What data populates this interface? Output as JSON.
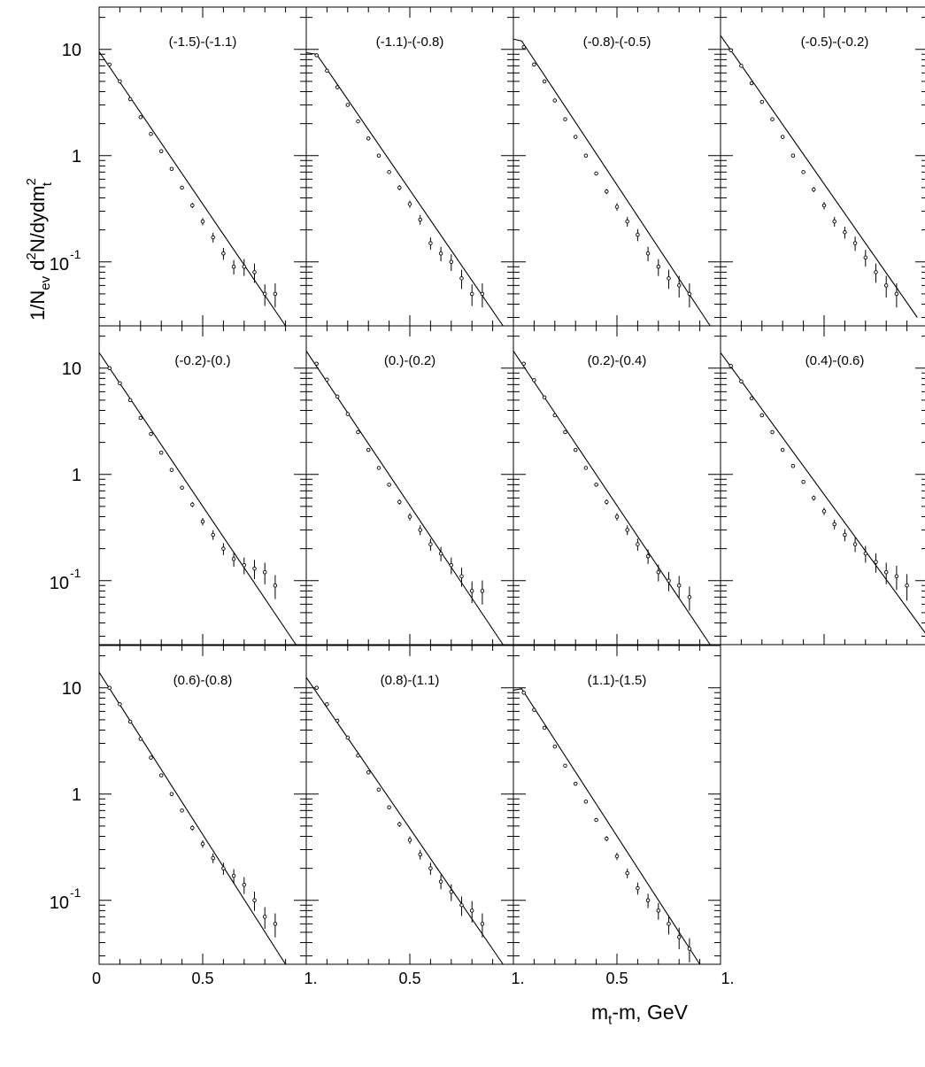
{
  "figure": {
    "y_axis_label": {
      "main": "1/N",
      "sub1": "ev",
      "mid": " d",
      "sup1": "2",
      "tail": "N/dydm",
      "sup2": "2",
      "sub2": "t"
    },
    "x_axis_label": {
      "main": "m",
      "sub": "t",
      "tail": "-m, GeV"
    },
    "x_tick_labels": [
      "0",
      "0.5",
      "1.",
      "0.5",
      "1.",
      "0.5",
      "1."
    ],
    "y_tick_labels": {
      "ten": "10",
      "one": "1",
      "tenth_base": "10",
      "tenth_exp": "-1"
    }
  },
  "chart_data": [
    {
      "type": "scatter",
      "title": "(-1.5)-(-1.1)",
      "scale_y": "log",
      "xlim": [
        0,
        1
      ],
      "ylim": [
        0.025,
        25
      ],
      "fit": {
        "x": [
          0,
          0.9
        ],
        "y": [
          9.5,
          0.025
        ]
      },
      "x": [
        0.05,
        0.1,
        0.15,
        0.2,
        0.25,
        0.3,
        0.35,
        0.4,
        0.45,
        0.5,
        0.55,
        0.6,
        0.65,
        0.7,
        0.75,
        0.8,
        0.85
      ],
      "y": [
        7.2,
        5.0,
        3.4,
        2.3,
        1.6,
        1.1,
        0.75,
        0.5,
        0.34,
        0.24,
        0.17,
        0.12,
        0.09,
        0.09,
        0.08,
        0.05,
        0.05
      ]
    },
    {
      "type": "scatter",
      "title": "(-1.1)-(-0.8)",
      "scale_y": "log",
      "xlim": [
        0,
        1
      ],
      "ylim": [
        0.025,
        25
      ],
      "fit": {
        "x": [
          0,
          0.05,
          0.95
        ],
        "y": [
          9.3,
          9.0,
          0.025
        ]
      },
      "x": [
        0.05,
        0.1,
        0.15,
        0.2,
        0.25,
        0.3,
        0.35,
        0.4,
        0.45,
        0.5,
        0.55,
        0.6,
        0.65,
        0.7,
        0.75,
        0.8,
        0.85
      ],
      "y": [
        8.8,
        6.3,
        4.4,
        3.0,
        2.1,
        1.45,
        1.0,
        0.7,
        0.5,
        0.35,
        0.25,
        0.15,
        0.12,
        0.1,
        0.07,
        0.05,
        0.05
      ]
    },
    {
      "type": "scatter",
      "title": "(-0.8)-(-0.5)",
      "scale_y": "log",
      "xlim": [
        0,
        1
      ],
      "ylim": [
        0.025,
        25
      ],
      "fit": {
        "x": [
          0,
          0.04,
          0.95
        ],
        "y": [
          12.5,
          12.0,
          0.025
        ]
      },
      "x": [
        0.05,
        0.1,
        0.15,
        0.2,
        0.25,
        0.3,
        0.35,
        0.4,
        0.45,
        0.5,
        0.55,
        0.6,
        0.65,
        0.7,
        0.75,
        0.8,
        0.85
      ],
      "y": [
        10.5,
        7.2,
        5.0,
        3.3,
        2.2,
        1.5,
        1.0,
        0.68,
        0.46,
        0.33,
        0.24,
        0.18,
        0.12,
        0.09,
        0.07,
        0.06,
        0.05
      ]
    },
    {
      "type": "scatter",
      "title": "(-0.5)-(-0.2)",
      "scale_y": "log",
      "xlim": [
        0,
        1
      ],
      "ylim": [
        0.025,
        25
      ],
      "fit": {
        "x": [
          0,
          0.95
        ],
        "y": [
          13.5,
          0.03
        ]
      },
      "x": [
        0.05,
        0.1,
        0.15,
        0.2,
        0.25,
        0.3,
        0.35,
        0.4,
        0.45,
        0.5,
        0.55,
        0.6,
        0.65,
        0.7,
        0.75,
        0.8,
        0.85
      ],
      "y": [
        9.8,
        7.0,
        4.8,
        3.2,
        2.2,
        1.5,
        1.0,
        0.7,
        0.48,
        0.34,
        0.24,
        0.19,
        0.15,
        0.11,
        0.08,
        0.06,
        0.05
      ]
    },
    {
      "type": "scatter",
      "title": "(-0.2)-(0.)",
      "scale_y": "log",
      "xlim": [
        0,
        1
      ],
      "ylim": [
        0.025,
        25
      ],
      "fit": {
        "x": [
          0,
          0.95
        ],
        "y": [
          14.0,
          0.025
        ]
      },
      "x": [
        0.05,
        0.1,
        0.15,
        0.2,
        0.25,
        0.3,
        0.35,
        0.4,
        0.45,
        0.5,
        0.55,
        0.6,
        0.65,
        0.7,
        0.75,
        0.8,
        0.85
      ],
      "y": [
        10.0,
        7.2,
        5.0,
        3.4,
        2.4,
        1.6,
        1.1,
        0.75,
        0.52,
        0.36,
        0.27,
        0.2,
        0.16,
        0.14,
        0.13,
        0.12,
        0.09
      ]
    },
    {
      "type": "scatter",
      "title": "(0.)-(0.2)",
      "scale_y": "log",
      "xlim": [
        0,
        1
      ],
      "ylim": [
        0.025,
        25
      ],
      "fit": {
        "x": [
          0,
          0.95
        ],
        "y": [
          14.5,
          0.025
        ]
      },
      "x": [
        0.05,
        0.1,
        0.15,
        0.2,
        0.25,
        0.3,
        0.35,
        0.4,
        0.45,
        0.5,
        0.55,
        0.6,
        0.65,
        0.7,
        0.75,
        0.8,
        0.85
      ],
      "y": [
        11.0,
        7.8,
        5.4,
        3.7,
        2.5,
        1.7,
        1.15,
        0.8,
        0.55,
        0.4,
        0.3,
        0.22,
        0.18,
        0.14,
        0.11,
        0.08,
        0.08
      ]
    },
    {
      "type": "scatter",
      "title": "(0.2)-(0.4)",
      "scale_y": "log",
      "xlim": [
        0,
        1
      ],
      "ylim": [
        0.025,
        25
      ],
      "fit": {
        "x": [
          0,
          0.95
        ],
        "y": [
          14.5,
          0.025
        ]
      },
      "x": [
        0.05,
        0.1,
        0.15,
        0.2,
        0.25,
        0.3,
        0.35,
        0.4,
        0.45,
        0.5,
        0.55,
        0.6,
        0.65,
        0.7,
        0.75,
        0.8,
        0.85
      ],
      "y": [
        11.0,
        7.7,
        5.3,
        3.6,
        2.5,
        1.7,
        1.15,
        0.8,
        0.55,
        0.4,
        0.3,
        0.22,
        0.17,
        0.12,
        0.1,
        0.09,
        0.07
      ]
    },
    {
      "type": "scatter",
      "title": "(0.4)-(0.6)",
      "scale_y": "log",
      "xlim": [
        0,
        1
      ],
      "ylim": [
        0.025,
        25
      ],
      "fit": {
        "x": [
          0,
          1.0
        ],
        "y": [
          14.0,
          0.03
        ]
      },
      "x": [
        0.05,
        0.1,
        0.15,
        0.2,
        0.25,
        0.3,
        0.35,
        0.4,
        0.45,
        0.5,
        0.55,
        0.6,
        0.65,
        0.7,
        0.75,
        0.8,
        0.85,
        0.9
      ],
      "y": [
        10.5,
        7.5,
        5.2,
        3.6,
        2.5,
        1.7,
        1.2,
        0.85,
        0.6,
        0.45,
        0.34,
        0.27,
        0.22,
        0.18,
        0.15,
        0.12,
        0.11,
        0.09
      ]
    },
    {
      "type": "scatter",
      "title": "(0.6)-(0.8)",
      "scale_y": "log",
      "xlim": [
        0,
        1
      ],
      "ylim": [
        0.025,
        25
      ],
      "fit": {
        "x": [
          0,
          0.9
        ],
        "y": [
          14.0,
          0.025
        ]
      },
      "x": [
        0.05,
        0.1,
        0.15,
        0.2,
        0.25,
        0.3,
        0.35,
        0.4,
        0.45,
        0.5,
        0.55,
        0.6,
        0.65,
        0.7,
        0.75,
        0.8,
        0.85
      ],
      "y": [
        10.0,
        7.0,
        4.8,
        3.3,
        2.2,
        1.5,
        1.0,
        0.7,
        0.48,
        0.34,
        0.25,
        0.2,
        0.17,
        0.14,
        0.1,
        0.07,
        0.06
      ]
    },
    {
      "type": "scatter",
      "title": "(0.8)-(1.1)",
      "scale_y": "log",
      "xlim": [
        0,
        1
      ],
      "ylim": [
        0.025,
        25
      ],
      "fit": {
        "x": [
          0,
          0.95
        ],
        "y": [
          12.5,
          0.025
        ]
      },
      "x": [
        0.05,
        0.1,
        0.15,
        0.2,
        0.25,
        0.3,
        0.35,
        0.4,
        0.45,
        0.5,
        0.55,
        0.6,
        0.65,
        0.7,
        0.75,
        0.8,
        0.85
      ],
      "y": [
        10.0,
        7.0,
        4.9,
        3.4,
        2.3,
        1.6,
        1.1,
        0.75,
        0.52,
        0.37,
        0.27,
        0.2,
        0.15,
        0.12,
        0.09,
        0.08,
        0.06
      ]
    },
    {
      "type": "scatter",
      "title": "(1.1)-(1.5)",
      "scale_y": "log",
      "xlim": [
        0,
        1
      ],
      "ylim": [
        0.025,
        25
      ],
      "fit": {
        "x": [
          0,
          0.04,
          0.9
        ],
        "y": [
          9.5,
          9.8,
          0.025
        ]
      },
      "x": [
        0.05,
        0.1,
        0.15,
        0.2,
        0.25,
        0.3,
        0.35,
        0.4,
        0.45,
        0.5,
        0.55,
        0.6,
        0.65,
        0.7,
        0.75,
        0.8,
        0.85
      ],
      "y": [
        9.0,
        6.2,
        4.2,
        2.8,
        1.85,
        1.25,
        0.85,
        0.57,
        0.38,
        0.26,
        0.18,
        0.13,
        0.1,
        0.08,
        0.06,
        0.045,
        0.035
      ]
    }
  ]
}
